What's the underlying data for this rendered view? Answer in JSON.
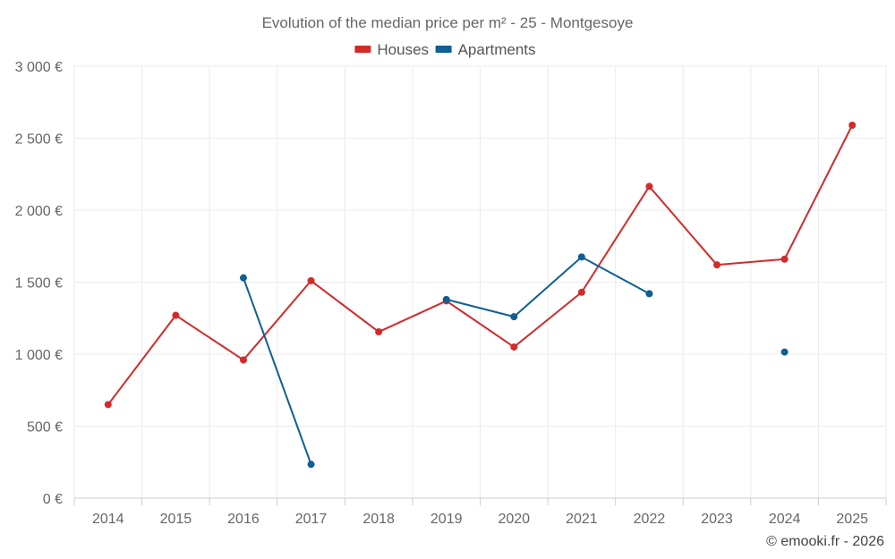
{
  "chart_data": {
    "type": "line",
    "title": "Evolution of the median price per m² - 25 - Montgesoye",
    "categories": [
      "2014",
      "2015",
      "2016",
      "2017",
      "2018",
      "2019",
      "2020",
      "2021",
      "2022",
      "2023",
      "2024",
      "2025"
    ],
    "y_ticks": [
      "0 €",
      "500 €",
      "1 000 €",
      "1 500 €",
      "2 000 €",
      "2 500 €",
      "3 000 €"
    ],
    "ylim": [
      0,
      3000
    ],
    "grid": true,
    "legend_position": "top-center",
    "series": [
      {
        "name": "Houses",
        "color": "#d32a2a",
        "values": [
          650,
          1270,
          960,
          1510,
          1155,
          1370,
          1050,
          1430,
          2165,
          1620,
          1660,
          2590
        ]
      },
      {
        "name": "Apartments",
        "color": "#0e5f93",
        "values": [
          null,
          null,
          1530,
          235,
          null,
          1380,
          1260,
          1675,
          1420,
          null,
          1015,
          null
        ]
      }
    ]
  },
  "credit": "© emooki.fr - 2026"
}
